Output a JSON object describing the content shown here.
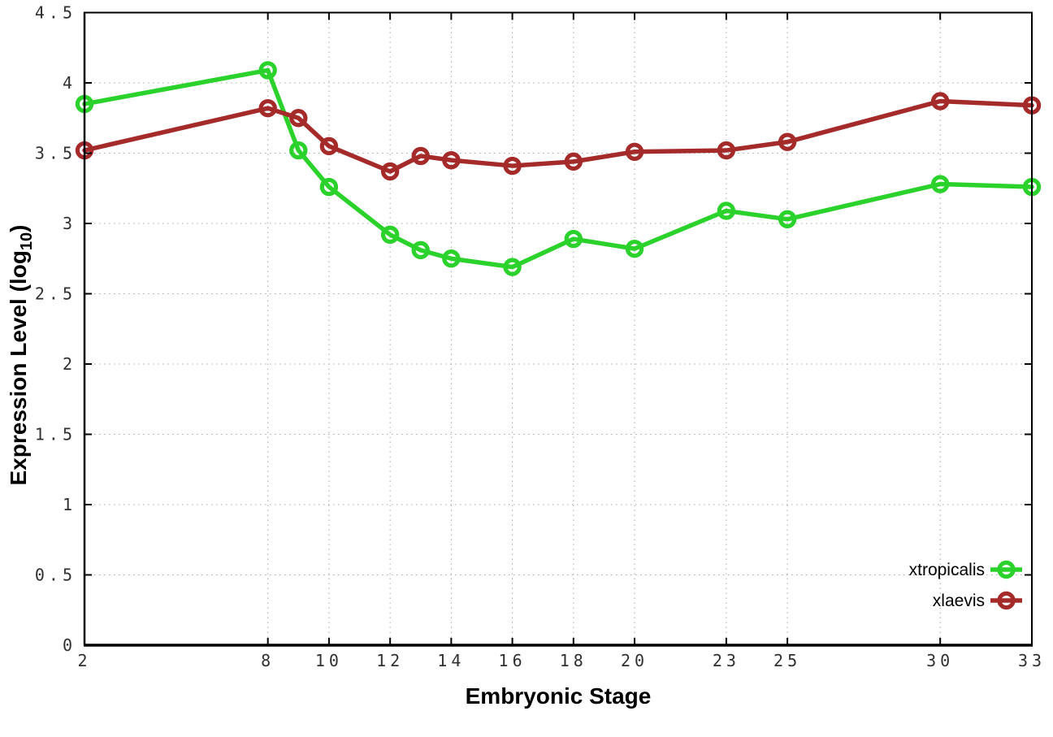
{
  "chart_data": {
    "type": "line",
    "title": "",
    "xlabel": "Embryonic Stage",
    "ylabel": "Expression Level (log10)",
    "ylabel_parts": {
      "prefix": "Expression Level (log",
      "subscript": "10",
      "suffix": ")"
    },
    "x": [
      2,
      8,
      9,
      10,
      12,
      13,
      14,
      16,
      18,
      20,
      23,
      25,
      30,
      33
    ],
    "series": [
      {
        "name": "xtropicalis",
        "color": "#2bd22b",
        "marker": "open-circle",
        "values": [
          3.85,
          4.09,
          3.52,
          3.26,
          2.92,
          2.81,
          2.75,
          2.69,
          2.89,
          2.82,
          3.09,
          3.03,
          3.28,
          3.26
        ]
      },
      {
        "name": "xlaevis",
        "color": "#a52a2a",
        "marker": "open-circle",
        "values": [
          3.52,
          3.82,
          3.75,
          3.55,
          3.37,
          3.48,
          3.45,
          3.41,
          3.44,
          3.51,
          3.52,
          3.58,
          3.87,
          3.84
        ]
      }
    ],
    "x_ticks": [
      2,
      8,
      10,
      12,
      14,
      16,
      18,
      20,
      23,
      25,
      30,
      33
    ],
    "x_tick_labels": [
      "2",
      "8",
      "10",
      "12",
      "14",
      "16",
      "18",
      "20",
      "23",
      "25",
      "30",
      "33"
    ],
    "y_ticks": [
      0,
      0.5,
      1,
      1.5,
      2,
      2.5,
      3,
      3.5,
      4,
      4.5
    ],
    "y_tick_labels": [
      "0",
      "0.5",
      "1",
      "1.5",
      "2",
      "2.5",
      "3",
      "3.5",
      "4",
      "4.5"
    ],
    "xlim": [
      2,
      33
    ],
    "ylim": [
      0,
      4.5
    ],
    "grid": true,
    "grid_color": "#a8a8a8",
    "axis_color": "#000000",
    "legend_position": "inside-bottom-right",
    "legend": [
      "xtropicalis",
      "xlaevis"
    ]
  }
}
